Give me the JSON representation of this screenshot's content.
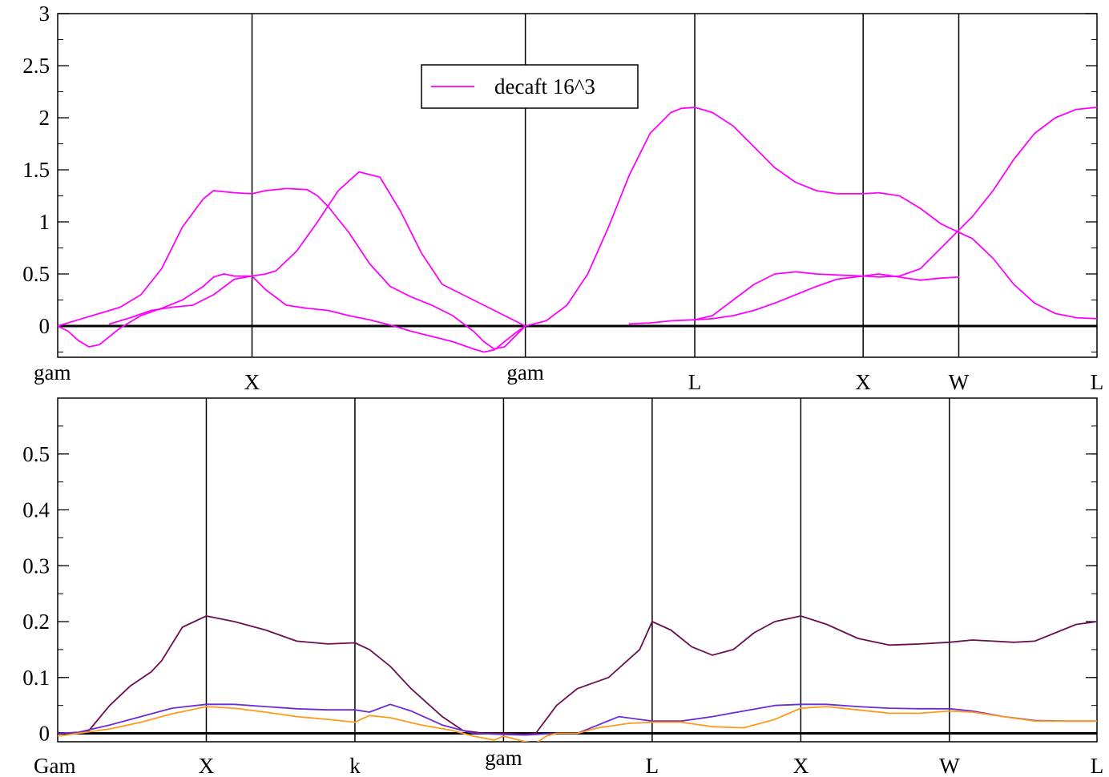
{
  "chart_data": [
    {
      "type": "line",
      "title": "",
      "xlabel": "",
      "ylabel": "",
      "ylim": [
        -0.3,
        3
      ],
      "xlim": [
        0,
        1
      ],
      "yticks": [
        0,
        0.5,
        1,
        1.5,
        2,
        2.5,
        3
      ],
      "ytick_labels": [
        "0",
        "0.5",
        "1",
        "1.5",
        "2",
        "2.5",
        "3"
      ],
      "zero_line": true,
      "grid": false,
      "legend_position": "top-center",
      "high_symmetry_points": [
        {
          "label": "gam",
          "x": 0.0,
          "label_row": "high"
        },
        {
          "label": "X",
          "x": 0.187,
          "label_row": "low"
        },
        {
          "label": "gam",
          "x": 0.45,
          "label_row": "high"
        },
        {
          "label": "L",
          "x": 0.613,
          "label_row": "low"
        },
        {
          "label": "X",
          "x": 0.775,
          "label_row": "low"
        },
        {
          "label": "W",
          "x": 0.867,
          "label_row": "low"
        },
        {
          "label": "L",
          "x": 1.0,
          "label_row": "low"
        }
      ],
      "series": [
        {
          "name": "decaft 16^3",
          "color": "#ff00ff",
          "legend": true,
          "x": [
            0,
            0.01,
            0.02,
            0.03,
            0.04,
            0.06,
            0.08,
            0.1,
            0.12,
            0.14,
            0.15,
            0.16,
            0.17,
            0.187,
            0.2,
            0.21,
            0.23,
            0.25,
            0.27,
            0.29,
            0.31,
            0.33,
            0.35,
            0.37,
            0.39,
            0.4,
            0.41,
            0.43,
            0.45
          ],
          "values": [
            0,
            -0.05,
            -0.14,
            -0.2,
            -0.18,
            -0.02,
            0.1,
            0.17,
            0.25,
            0.38,
            0.47,
            0.5,
            0.48,
            0.48,
            0.5,
            0.53,
            0.72,
            1.0,
            1.3,
            1.48,
            1.43,
            1.1,
            0.7,
            0.4,
            0.3,
            0.25,
            0.2,
            0.1,
            0
          ]
        },
        {
          "name": "",
          "color": "#ff00ff",
          "legend": false,
          "x": [
            0,
            0.02,
            0.04,
            0.06,
            0.08,
            0.1,
            0.12,
            0.14,
            0.15,
            0.17,
            0.187,
            0.2,
            0.22,
            0.24,
            0.25,
            0.26,
            0.28,
            0.3,
            0.32,
            0.34,
            0.36,
            0.38,
            0.4,
            0.41,
            0.42,
            0.43,
            0.44,
            0.45
          ],
          "values": [
            0,
            0.06,
            0.12,
            0.18,
            0.3,
            0.55,
            0.95,
            1.22,
            1.3,
            1.28,
            1.27,
            1.3,
            1.32,
            1.31,
            1.25,
            1.15,
            0.9,
            0.6,
            0.38,
            0.28,
            0.2,
            0.1,
            -0.05,
            -0.15,
            -0.22,
            -0.2,
            -0.1,
            0
          ]
        },
        {
          "name": "",
          "color": "#ff00ff",
          "legend": false,
          "x": [
            0.05,
            0.07,
            0.09,
            0.11,
            0.13,
            0.15,
            0.17,
            0.187,
            0.2,
            0.22,
            0.24,
            0.26,
            0.28,
            0.3,
            0.32,
            0.34,
            0.36,
            0.38,
            0.4,
            0.41,
            0.42,
            0.43,
            0.44,
            0.45
          ],
          "values": [
            0.02,
            0.08,
            0.15,
            0.18,
            0.2,
            0.3,
            0.45,
            0.48,
            0.35,
            0.2,
            0.17,
            0.15,
            0.1,
            0.06,
            0.01,
            -0.05,
            -0.1,
            -0.15,
            -0.22,
            -0.25,
            -0.23,
            -0.15,
            -0.07,
            0
          ]
        },
        {
          "name": "",
          "color": "#ff00ff",
          "legend": false,
          "x": [
            0.45,
            0.47,
            0.49,
            0.51,
            0.53,
            0.55,
            0.57,
            0.59,
            0.6,
            0.613,
            0.63,
            0.65,
            0.67,
            0.69,
            0.71,
            0.73,
            0.75,
            0.775,
            0.79,
            0.81,
            0.83,
            0.85,
            0.867,
            0.88,
            0.9,
            0.92,
            0.94,
            0.96,
            0.98,
            1.0
          ],
          "values": [
            0,
            0.05,
            0.2,
            0.5,
            0.95,
            1.45,
            1.85,
            2.05,
            2.09,
            2.1,
            2.05,
            1.92,
            1.72,
            1.52,
            1.38,
            1.3,
            1.27,
            1.27,
            1.28,
            1.25,
            1.13,
            0.98,
            0.9,
            0.84,
            0.65,
            0.4,
            0.22,
            0.12,
            0.08,
            0.07
          ]
        },
        {
          "name": "",
          "color": "#ff00ff",
          "legend": false,
          "x": [
            0.55,
            0.57,
            0.59,
            0.613,
            0.63,
            0.65,
            0.67,
            0.69,
            0.71,
            0.73,
            0.75,
            0.775,
            0.79,
            0.81,
            0.83,
            0.85,
            0.867,
            0.88,
            0.9,
            0.92,
            0.94,
            0.96,
            0.98,
            1.0
          ],
          "values": [
            0.02,
            0.03,
            0.05,
            0.06,
            0.1,
            0.25,
            0.4,
            0.5,
            0.52,
            0.5,
            0.49,
            0.48,
            0.47,
            0.48,
            0.55,
            0.75,
            0.92,
            1.05,
            1.3,
            1.6,
            1.85,
            2.0,
            2.08,
            2.1
          ]
        },
        {
          "name": "",
          "color": "#ff00ff",
          "legend": false,
          "x": [
            0.613,
            0.63,
            0.65,
            0.67,
            0.69,
            0.71,
            0.73,
            0.75,
            0.775,
            0.79,
            0.81,
            0.83,
            0.85,
            0.867
          ],
          "values": [
            0.06,
            0.07,
            0.1,
            0.15,
            0.22,
            0.3,
            0.38,
            0.45,
            0.48,
            0.5,
            0.47,
            0.44,
            0.46,
            0.47
          ]
        }
      ]
    },
    {
      "type": "line",
      "title": "",
      "xlabel": "",
      "ylabel": "",
      "ylim": [
        -0.015,
        0.6
      ],
      "xlim": [
        0,
        1
      ],
      "yticks": [
        0,
        0.1,
        0.2,
        0.3,
        0.4,
        0.5
      ],
      "ytick_labels": [
        "0",
        "0.1",
        "0.2",
        "0.3",
        "0.4",
        "0.5"
      ],
      "zero_line": true,
      "grid": false,
      "legend_position": "none",
      "high_symmetry_points": [
        {
          "label": "Gam",
          "x": 0.0,
          "label_row": "low"
        },
        {
          "label": "X",
          "x": 0.143,
          "label_row": "low"
        },
        {
          "label": "k",
          "x": 0.286,
          "label_row": "low"
        },
        {
          "label": "gam",
          "x": 0.429,
          "label_row": "high"
        },
        {
          "label": "L",
          "x": 0.572,
          "label_row": "low"
        },
        {
          "label": "X",
          "x": 0.715,
          "label_row": "low"
        },
        {
          "label": "W",
          "x": 0.858,
          "label_row": "low"
        },
        {
          "label": "L",
          "x": 1.0,
          "label_row": "low"
        }
      ],
      "series": [
        {
          "name": "",
          "color": "#6b0f4f",
          "x": [
            0,
            0.02,
            0.03,
            0.05,
            0.07,
            0.09,
            0.1,
            0.12,
            0.143,
            0.17,
            0.2,
            0.23,
            0.26,
            0.286,
            0.3,
            0.32,
            0.34,
            0.37,
            0.39,
            0.41,
            0.429,
            0.45,
            0.46,
            0.48,
            0.5,
            0.53,
            0.56,
            0.572,
            0.59,
            0.61,
            0.63,
            0.65,
            0.67,
            0.69,
            0.715,
            0.74,
            0.77,
            0.8,
            0.83,
            0.858,
            0.88,
            0.9,
            0.92,
            0.94,
            0.96,
            0.98,
            1.0
          ],
          "values": [
            0,
            0,
            0.005,
            0.05,
            0.085,
            0.11,
            0.13,
            0.19,
            0.21,
            0.2,
            0.185,
            0.165,
            0.16,
            0.162,
            0.15,
            0.12,
            0.08,
            0.03,
            0.005,
            0,
            0,
            -0.002,
            0,
            0.05,
            0.08,
            0.1,
            0.15,
            0.2,
            0.185,
            0.155,
            0.14,
            0.15,
            0.18,
            0.2,
            0.21,
            0.195,
            0.17,
            0.158,
            0.16,
            0.163,
            0.167,
            0.165,
            0.163,
            0.165,
            0.18,
            0.195,
            0.2
          ]
        },
        {
          "name": "",
          "color": "#6a2cd4",
          "x": [
            0,
            0.02,
            0.05,
            0.08,
            0.11,
            0.143,
            0.17,
            0.2,
            0.23,
            0.26,
            0.286,
            0.3,
            0.32,
            0.34,
            0.37,
            0.4,
            0.429,
            0.45,
            0.48,
            0.5,
            0.52,
            0.54,
            0.56,
            0.572,
            0.6,
            0.63,
            0.66,
            0.69,
            0.715,
            0.74,
            0.77,
            0.8,
            0.83,
            0.858,
            0.88,
            0.91,
            0.94,
            0.97,
            1.0
          ],
          "values": [
            0,
            0.002,
            0.015,
            0.03,
            0.045,
            0.052,
            0.052,
            0.048,
            0.044,
            0.042,
            0.042,
            0.038,
            0.052,
            0.04,
            0.015,
            0,
            -0.002,
            -0.003,
            0,
            0,
            0.015,
            0.03,
            0.025,
            0.022,
            0.022,
            0.03,
            0.04,
            0.05,
            0.052,
            0.052,
            0.048,
            0.045,
            0.044,
            0.044,
            0.04,
            0.03,
            0.023,
            0.022,
            0.022
          ]
        },
        {
          "name": "",
          "color": "#ff9a1a",
          "x": [
            0,
            0.02,
            0.05,
            0.08,
            0.11,
            0.143,
            0.17,
            0.2,
            0.23,
            0.26,
            0.286,
            0.3,
            0.32,
            0.35,
            0.38,
            0.4,
            0.42,
            0.429,
            0.45,
            0.46,
            0.47,
            0.48,
            0.5,
            0.52,
            0.55,
            0.572,
            0.6,
            0.63,
            0.66,
            0.69,
            0.715,
            0.74,
            0.77,
            0.8,
            0.83,
            0.858,
            0.88,
            0.91,
            0.94,
            0.97,
            1.0
          ],
          "values": [
            -0.005,
            0,
            0.008,
            0.02,
            0.035,
            0.048,
            0.045,
            0.038,
            0.03,
            0.025,
            0.02,
            0.032,
            0.028,
            0.015,
            0.005,
            -0.005,
            -0.012,
            -0.005,
            -0.015,
            -0.018,
            -0.005,
            0,
            0,
            0.01,
            0.018,
            0.02,
            0.02,
            0.012,
            0.01,
            0.025,
            0.045,
            0.048,
            0.042,
            0.036,
            0.036,
            0.04,
            0.038,
            0.03,
            0.022,
            0.022,
            0.022
          ]
        }
      ]
    }
  ]
}
